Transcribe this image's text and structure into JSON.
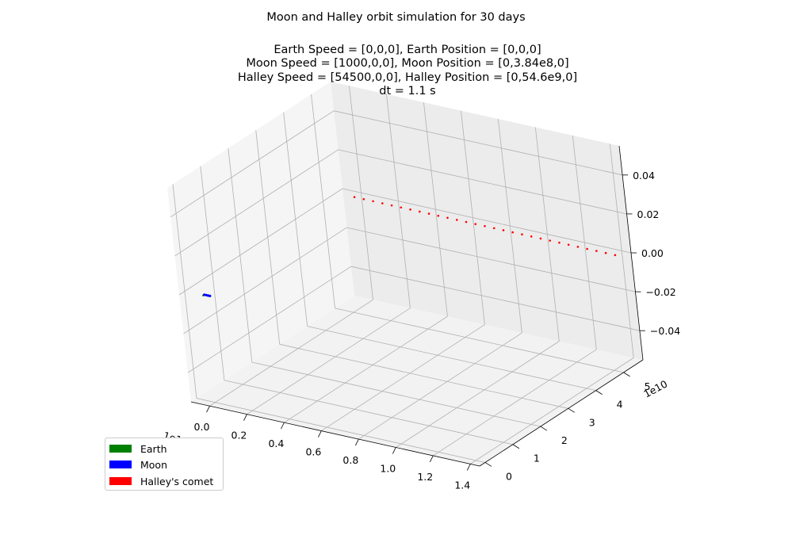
{
  "chart_data": {
    "type": "scatter",
    "projection": "3d",
    "title": "Moon and Halley orbit simulation for 30 days",
    "subtitle_lines": [
      "Earth Speed = [0,0,0], Earth Position = [0,0,0]",
      "Moon Speed = [1000,0,0], Moon Position = [0,3.84e8,0]",
      "Halley Speed = [54500,0,0], Halley Position = [0,54.6e9,0]",
      "dt = 1.1 s"
    ],
    "axes": {
      "x": {
        "ticks": [
          "0.0",
          "0.2",
          "0.4",
          "0.6",
          "0.8",
          "1.0",
          "1.2",
          "1.4"
        ],
        "offset_text": "1e11",
        "lim": [
          -0.1,
          1.45
        ]
      },
      "y": {
        "ticks": [
          "0",
          "1",
          "2",
          "3",
          "4",
          "5"
        ],
        "offset_text": "1e10",
        "lim": [
          -0.2,
          5.7
        ]
      },
      "z": {
        "ticks": [
          "−0.04",
          "−0.02",
          "0.00",
          "0.02",
          "0.04"
        ],
        "lim": [
          -0.055,
          0.055
        ]
      }
    },
    "grid": true,
    "legend_position": "lower-left",
    "series": [
      {
        "name": "Earth",
        "color": "#008000",
        "points": [
          [
            0,
            0,
            0
          ]
        ]
      },
      {
        "name": "Moon",
        "color": "#0000ff",
        "points": [
          [
            0.0,
            0.0384,
            0
          ],
          [
            0.01,
            0.0384,
            0
          ],
          [
            0.02,
            0.038,
            0
          ],
          [
            0.03,
            0.037,
            0
          ]
        ]
      },
      {
        "name": "Halley's comet",
        "color": "#ff0000",
        "points": [
          [
            0.0,
            5.46,
            0
          ],
          [
            0.05,
            5.46,
            0
          ],
          [
            0.1,
            5.46,
            0
          ],
          [
            0.15,
            5.46,
            0
          ],
          [
            0.2,
            5.46,
            0
          ],
          [
            0.25,
            5.46,
            0
          ],
          [
            0.3,
            5.46,
            0
          ],
          [
            0.35,
            5.46,
            0
          ],
          [
            0.4,
            5.46,
            0
          ],
          [
            0.45,
            5.46,
            0
          ],
          [
            0.5,
            5.46,
            0
          ],
          [
            0.55,
            5.46,
            0
          ],
          [
            0.6,
            5.46,
            0
          ],
          [
            0.65,
            5.46,
            0
          ],
          [
            0.7,
            5.46,
            0
          ],
          [
            0.75,
            5.46,
            0
          ],
          [
            0.8,
            5.46,
            0
          ],
          [
            0.85,
            5.46,
            0
          ],
          [
            0.9,
            5.46,
            0
          ],
          [
            0.95,
            5.46,
            0
          ],
          [
            1.0,
            5.46,
            0
          ],
          [
            1.05,
            5.46,
            0
          ],
          [
            1.1,
            5.46,
            0
          ],
          [
            1.15,
            5.46,
            0
          ],
          [
            1.2,
            5.46,
            0
          ],
          [
            1.25,
            5.46,
            0
          ],
          [
            1.3,
            5.46,
            0
          ],
          [
            1.35,
            5.46,
            0
          ],
          [
            1.4,
            5.46,
            0
          ]
        ]
      }
    ]
  }
}
